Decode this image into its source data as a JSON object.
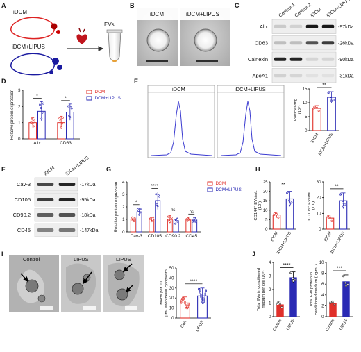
{
  "panels": {
    "A": {
      "letter": "A",
      "group1": "iDCM",
      "group2": "iDCM+LIPUS",
      "output": "EVs"
    },
    "B": {
      "letter": "B",
      "group1": "iDCM",
      "group2": "iDCM+LIPUS"
    },
    "C": {
      "letter": "C",
      "lanes": [
        "Control-1",
        "Control-2",
        "iDCM",
        "iDCM+LIPUS"
      ],
      "rows": [
        {
          "name": "Alix",
          "size": "-97kDa"
        },
        {
          "name": "CD63",
          "size": "-26kDa"
        },
        {
          "name": "Calnexin",
          "size": "-90kDa"
        },
        {
          "name": "ApoA1",
          "size": "-31kDa"
        }
      ]
    },
    "D": {
      "letter": "D"
    },
    "E": {
      "letter": "E",
      "trace1": "iDCM",
      "trace2": "iDCM+LIPUS"
    },
    "F": {
      "letter": "F",
      "lanes": [
        "iDCM",
        "iDCM+LIPUS"
      ],
      "rows": [
        {
          "name": "Cav-3",
          "size": "-17kDa"
        },
        {
          "name": "CD105",
          "size": "-95kDa"
        },
        {
          "name": "CD90.2",
          "size": "-18kDa"
        },
        {
          "name": "CD45",
          "size": "-147kDa"
        }
      ]
    },
    "G": {
      "letter": "G"
    },
    "H": {
      "letter": "H"
    },
    "I": {
      "letter": "I",
      "images": [
        "Control",
        "LIPUS",
        "LIPUS"
      ]
    },
    "J": {
      "letter": "J"
    }
  },
  "chart_data": [
    {
      "panel": "D",
      "type": "bar",
      "categories": [
        "Alix",
        "CD63"
      ],
      "series": [
        {
          "name": "iDCM",
          "values": [
            1.0,
            1.0
          ],
          "errors": [
            0.3,
            0.4
          ]
        },
        {
          "name": "iDCM+LIPUS",
          "values": [
            1.7,
            1.65
          ],
          "errors": [
            0.6,
            0.5
          ]
        }
      ],
      "ylabel": "Relative protein expression",
      "ylim": [
        0,
        3
      ],
      "yticks": [
        0,
        1,
        2,
        3
      ],
      "significance": [
        "*",
        "*"
      ],
      "colors": {
        "iDCM": "#e0302a",
        "iDCM+LIPUS": "#2a2ab4"
      },
      "legend_position": "right"
    },
    {
      "panel": "E",
      "type": "bar",
      "categories": [
        "iDCM",
        "iDCM+LIPUS"
      ],
      "values": [
        8,
        12
      ],
      "errors": [
        1,
        2
      ],
      "ylabel": "Particles/mg (10⁹)",
      "ylim": [
        0,
        15
      ],
      "yticks": [
        0,
        5,
        10,
        15
      ],
      "significance": "**"
    },
    {
      "panel": "G",
      "type": "bar",
      "categories": [
        "Cav-3",
        "CD105",
        "CD90.2",
        "CD45"
      ],
      "series": [
        {
          "name": "iDCM",
          "values": [
            1.0,
            1.0,
            1.0,
            1.0
          ],
          "errors": [
            0.2,
            0.2,
            0.3,
            0.15
          ]
        },
        {
          "name": "iDCM+LIPUS",
          "values": [
            1.6,
            2.5,
            0.9,
            0.95
          ],
          "errors": [
            0.3,
            0.7,
            0.3,
            0.2
          ]
        }
      ],
      "ylabel": "Relative protein expression",
      "ylim": [
        0,
        4
      ],
      "yticks": [
        0,
        1,
        2,
        3,
        4
      ],
      "significance": [
        "*",
        "****",
        "ns",
        "ns"
      ],
      "colors": {
        "iDCM": "#e0302a",
        "iDCM+LIPUS": "#2a2ab4"
      },
      "legend_position": "right"
    },
    {
      "panel": "H",
      "type": "bar",
      "categories": [
        "iDCM",
        "iDCM+LIPUS"
      ],
      "values": [
        7.5,
        16
      ],
      "errors": [
        1.5,
        4
      ],
      "ylabel": "CD144⁺ EVs/mL (10⁷)",
      "ylim": [
        0,
        25
      ],
      "yticks": [
        0,
        5,
        10,
        15,
        20,
        25
      ],
      "significance": "**"
    },
    {
      "panel": "H",
      "type": "bar",
      "categories": [
        "iDCM",
        "iDCM+LIPUS"
      ],
      "values": [
        7,
        18
      ],
      "errors": [
        2,
        5
      ],
      "ylabel": "CD105⁺ EVs/mL (10⁷)",
      "ylim": [
        0,
        30
      ],
      "yticks": [
        0,
        10,
        20,
        30
      ],
      "significance": "**"
    },
    {
      "panel": "I",
      "type": "bar",
      "categories": [
        "Con",
        "LIPUS"
      ],
      "values": [
        15,
        22
      ],
      "errors": [
        6,
        8
      ],
      "ylabel": "MVBs per 10 μm² endothelial cytoplasm",
      "ylim": [
        0,
        50
      ],
      "yticks": [
        0,
        10,
        20,
        30,
        40,
        50
      ],
      "significance": "****"
    },
    {
      "panel": "J",
      "type": "bar",
      "categories": [
        "Control",
        "LIPUS"
      ],
      "values": [
        0.9,
        2.9
      ],
      "errors": [
        0.25,
        0.4
      ],
      "ylabel": "Total EVs in conditioned medium per cell (10³)",
      "ylim": [
        0,
        4
      ],
      "yticks": [
        0,
        1,
        2,
        3,
        4
      ],
      "significance": "****"
    },
    {
      "panel": "J",
      "type": "bar",
      "categories": [
        "Control",
        "LIPUS"
      ],
      "values": [
        2.5,
        6.5
      ],
      "errors": [
        0.4,
        1.2
      ],
      "ylabel": "Total EVs protein in conditioned medium (μg/mL)",
      "ylim": [
        0,
        10
      ],
      "yticks": [
        0,
        2,
        4,
        6,
        8,
        10
      ],
      "significance": "***"
    }
  ],
  "colors": {
    "red": "#e0302a",
    "blue": "#2a2ab4",
    "trace": "#3a3ad0"
  }
}
